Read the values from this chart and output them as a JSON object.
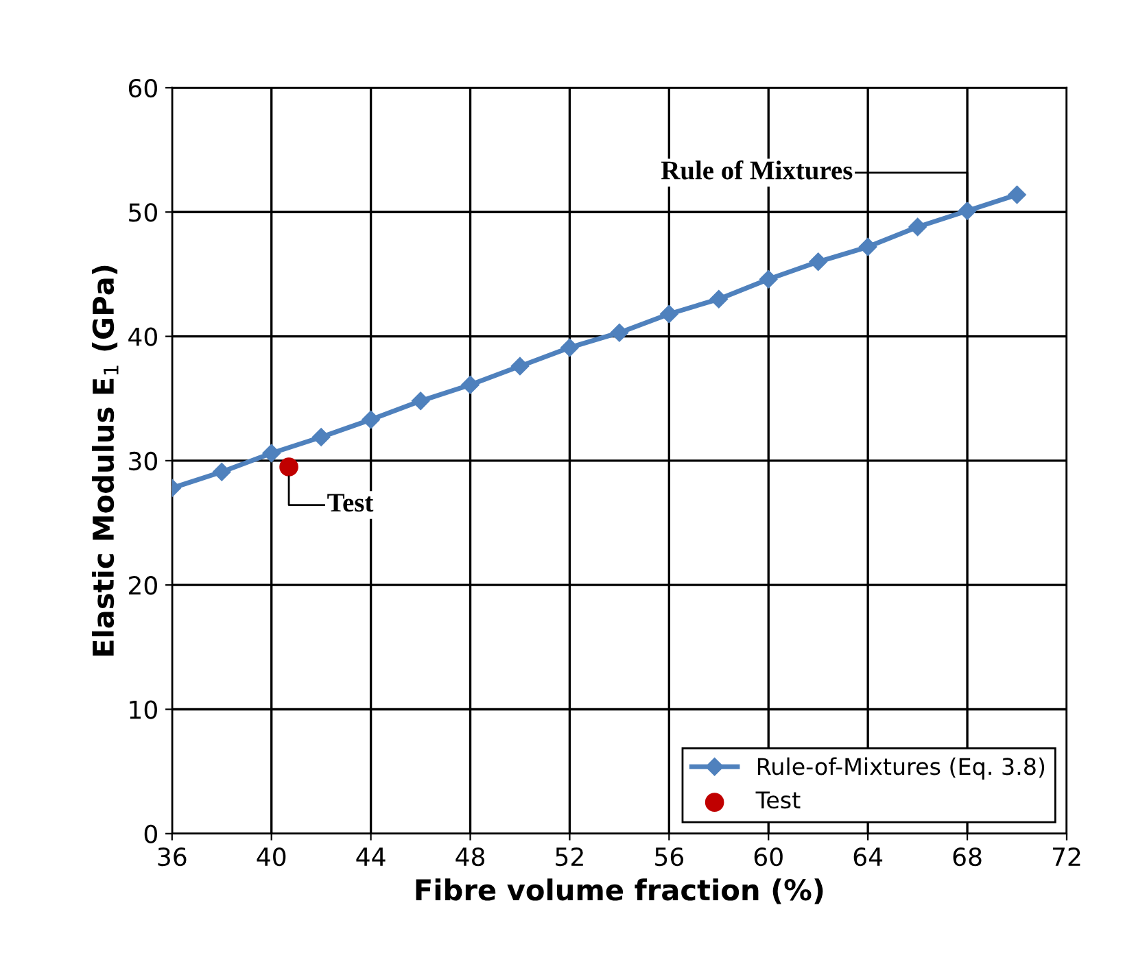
{
  "chart_data": {
    "type": "line",
    "xlabel": "Fibre volume fraction (%)",
    "ylabel": "Elastic Modulus E$_{1}$ (GPa)",
    "xlim": [
      36,
      72
    ],
    "xticks": [
      36,
      40,
      44,
      48,
      52,
      56,
      60,
      64,
      68,
      72
    ],
    "ylim": [
      0,
      60
    ],
    "yticks": [
      0,
      10,
      20,
      30,
      40,
      50,
      60
    ],
    "grid": true,
    "legend": "bottom right",
    "series": [
      {
        "name": "Rule-of-Mixtures (Eq. 3.8)",
        "color": "#4f81bd",
        "marker": "diamond",
        "line_style": "solid",
        "x": [
          36,
          38,
          40,
          42,
          44,
          46,
          48,
          50,
          52,
          54,
          56,
          58,
          60,
          62,
          64,
          66,
          68,
          70
        ],
        "values": [
          27.8,
          29.1,
          30.6,
          31.9,
          33.3,
          34.8,
          36.1,
          37.6,
          39.1,
          40.3,
          41.8,
          43.0,
          44.6,
          46.0,
          47.2,
          48.8,
          50.1,
          51.4
        ]
      },
      {
        "name": "Test",
        "type": "scatter",
        "color": "#c00000",
        "marker": "circle",
        "x": [
          40.7
        ],
        "values": [
          29.5
        ]
      }
    ],
    "annotations": [
      {
        "text": "Rule of Mixtures",
        "x": 68,
        "y": 50.1
      },
      {
        "text": "Test",
        "x": 40.7,
        "y": 29.5
      }
    ]
  }
}
